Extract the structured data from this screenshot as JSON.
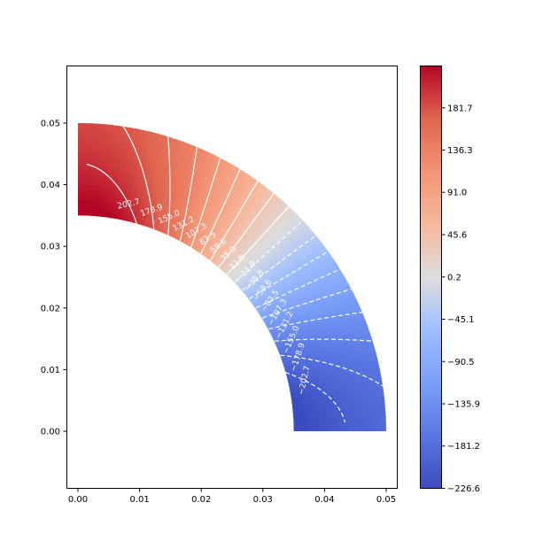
{
  "chart_data": {
    "type": "filled-contour",
    "title": "",
    "xlabel": "",
    "ylabel": "",
    "xlim": [
      -0.002,
      0.0518
    ],
    "ylim": [
      -0.0093,
      0.0593
    ],
    "x_ticks": [
      "0.00",
      "0.01",
      "0.02",
      "0.03",
      "0.04",
      "0.05"
    ],
    "y_ticks": [
      "0.00",
      "0.01",
      "0.02",
      "0.03",
      "0.04",
      "0.05"
    ],
    "domain": {
      "shape": "quarter-annulus",
      "inner_radius": 0.035,
      "outer_radius": 0.05
    },
    "colormap": "coolwarm",
    "value_range": [
      -226.6,
      226.6
    ],
    "colorbar_ticks": [
      "−226.6",
      "−181.2",
      "−135.9",
      "−90.5",
      "−45.1",
      "0.2",
      "45.6",
      "91.0",
      "136.3",
      "181.7"
    ],
    "contour_levels": [
      -202.7,
      -178.9,
      -155.0,
      -131.2,
      -107.3,
      -83.5,
      -59.6,
      -35.8,
      -11.9,
      11.9,
      35.8,
      59.6,
      83.5,
      107.3,
      131.2,
      155.0,
      178.9,
      202.7
    ],
    "contour_labels": [
      "−202.7",
      "−178.9",
      "−155.0",
      "−131.2",
      "−107.3",
      "−83.5",
      "−59.6",
      "−35.8",
      "−11.9",
      "11.9",
      "35.8",
      "59.6",
      "83.5",
      "107.3",
      "131.2",
      "155.0",
      "178.9",
      "202.7"
    ],
    "negative_linestyle": "dashed",
    "positive_linestyle": "solid"
  }
}
